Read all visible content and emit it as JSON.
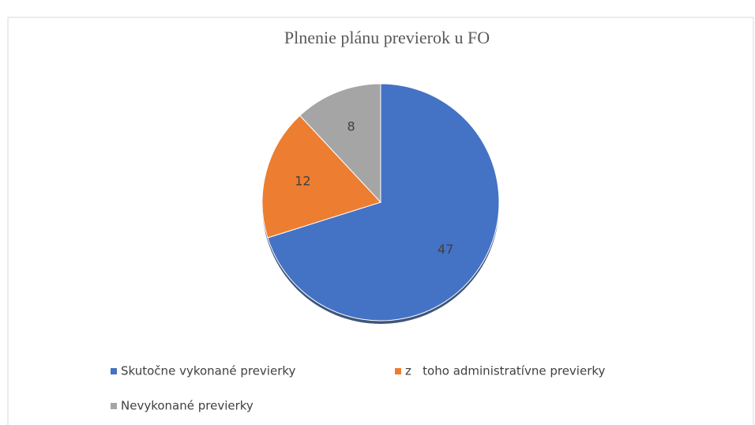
{
  "chart_data": {
    "type": "pie",
    "title": "Plnenie plánu previerok u FO",
    "categories": [
      "Skutočne vykonané previerky",
      "z   toho administratívne previerky",
      "Nevykonané previerky"
    ],
    "values": [
      47,
      12,
      8
    ],
    "colors": [
      "#4472c4",
      "#ed7d31",
      "#a5a5a5"
    ]
  }
}
